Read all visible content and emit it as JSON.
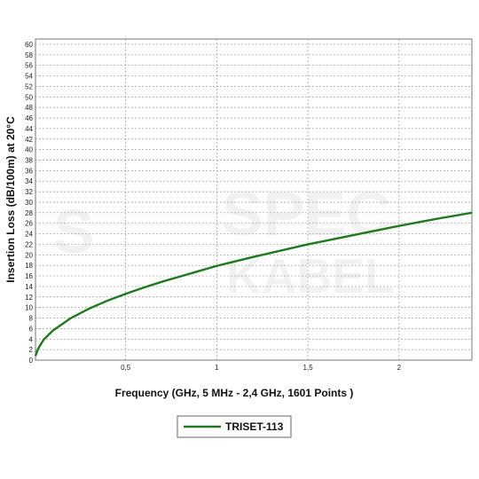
{
  "chart_data": {
    "type": "line",
    "xlabel": "Frequency (GHz, 5 MHz - 2,4 GHz, 1601 Points )",
    "ylabel": "Insertion Loss (dB/100m) at 20°C",
    "xlim": [
      0.005,
      2.4
    ],
    "ylim": [
      0,
      61
    ],
    "x_ticks": [
      0.5,
      1,
      1.5,
      2
    ],
    "x_tick_labels": [
      "0,5",
      "1",
      "1,5",
      "2"
    ],
    "y_ticks": [
      0,
      2,
      4,
      6,
      8,
      10,
      12,
      14,
      16,
      18,
      20,
      22,
      24,
      26,
      28,
      30,
      32,
      34,
      36,
      38,
      40,
      42,
      44,
      46,
      48,
      50,
      52,
      54,
      56,
      58,
      60
    ],
    "grid": true,
    "legend_position": "bottom-center",
    "series": [
      {
        "name": "TRISET-113",
        "color": "#1f7a1f",
        "x": [
          0.005,
          0.02,
          0.05,
          0.1,
          0.2,
          0.3,
          0.4,
          0.5,
          0.6,
          0.7,
          0.8,
          0.9,
          1.0,
          1.2,
          1.4,
          1.5,
          1.6,
          1.8,
          2.0,
          2.2,
          2.4
        ],
        "y": [
          0.8,
          2.2,
          3.9,
          5.6,
          8.0,
          9.8,
          11.3,
          12.6,
          13.8,
          14.9,
          15.9,
          16.9,
          17.9,
          19.6,
          21.2,
          22.0,
          22.7,
          24.1,
          25.5,
          26.8,
          28.0
        ]
      }
    ]
  }
}
